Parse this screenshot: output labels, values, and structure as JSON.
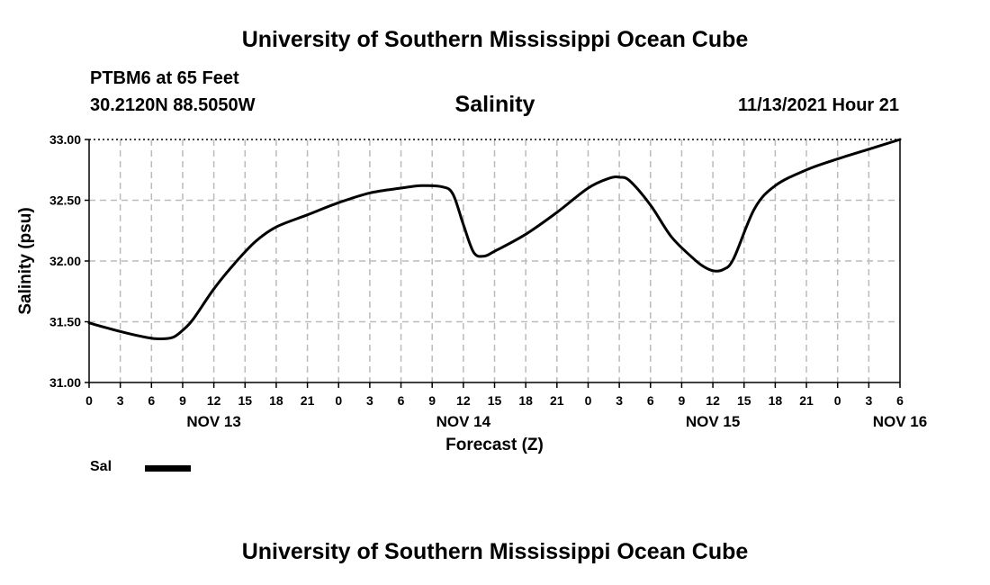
{
  "page": {
    "title_top": "University of Southern Mississippi Ocean Cube",
    "title_bottom": "University of Southern Mississippi Ocean Cube",
    "station": "PTBM6 at 65 Feet",
    "coordinates": "30.2120N  88.5050W",
    "timestamp": "11/13/2021 Hour 21"
  },
  "chart_data": {
    "type": "line",
    "title": "Salinity",
    "xlabel": "Forecast (Z)",
    "ylabel": "Salinity (psu)",
    "x_unit": "hours from 11/13 00Z",
    "xlim": [
      0,
      78
    ],
    "ylim": [
      31.0,
      33.0
    ],
    "yticks": [
      "31.00",
      "31.50",
      "32.00",
      "32.50",
      "33.00"
    ],
    "xticks": [
      0,
      3,
      6,
      9,
      12,
      15,
      18,
      21,
      24,
      27,
      30,
      33,
      36,
      39,
      42,
      45,
      48,
      51,
      54,
      57,
      60,
      63,
      66,
      69,
      72,
      75,
      78
    ],
    "xtick_labels": [
      "0",
      "3",
      "6",
      "9",
      "12",
      "15",
      "18",
      "21",
      "0",
      "3",
      "6",
      "9",
      "12",
      "15",
      "18",
      "21",
      "0",
      "3",
      "6",
      "9",
      "12",
      "15",
      "18",
      "21",
      "0",
      "3",
      "6"
    ],
    "date_labels": [
      {
        "x": 12,
        "label": "NOV 13"
      },
      {
        "x": 36,
        "label": "NOV 14"
      },
      {
        "x": 60,
        "label": "NOV 15"
      },
      {
        "x": 78,
        "label": "NOV 16"
      }
    ],
    "grid": true,
    "legend": "bottom-left",
    "series": [
      {
        "name": "Sal",
        "color": "#000000",
        "x": [
          0,
          3,
          5,
          6.5,
          8,
          9,
          10,
          12,
          14,
          16,
          18,
          21,
          24,
          27,
          30,
          32,
          34,
          35,
          36,
          37,
          38,
          39,
          42,
          45,
          48,
          50,
          51,
          52,
          54,
          56,
          58,
          59,
          60,
          61,
          62,
          64,
          66,
          69,
          72,
          75,
          78
        ],
        "y": [
          31.49,
          31.42,
          31.38,
          31.36,
          31.37,
          31.43,
          31.52,
          31.77,
          31.98,
          32.16,
          32.28,
          32.38,
          32.48,
          32.56,
          32.6,
          32.62,
          32.61,
          32.55,
          32.3,
          32.07,
          32.04,
          32.08,
          32.22,
          32.4,
          32.6,
          32.68,
          32.69,
          32.66,
          32.46,
          32.2,
          32.03,
          31.96,
          31.92,
          31.93,
          32.02,
          32.43,
          32.62,
          32.75,
          32.84,
          32.92,
          33.0
        ]
      }
    ]
  }
}
